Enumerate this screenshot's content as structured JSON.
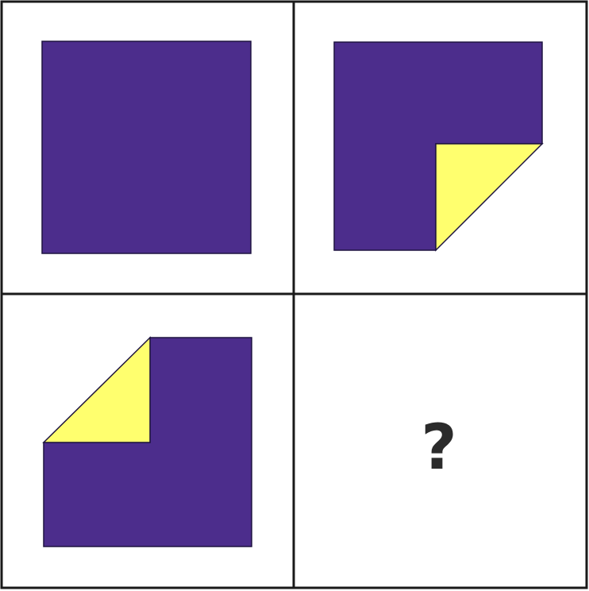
{
  "colors": {
    "background": "#ffffff",
    "grid_line": "#1a1a1a",
    "square_fill": "#4c2d8c",
    "folded_flap_fill": "#ffff6e",
    "shape_outline": "#1e1440",
    "question_mark": "#2b2b2b"
  },
  "panels": [
    {
      "shape": "full-square",
      "fold": "none"
    },
    {
      "shape": "square-with-folded-corner",
      "fold": "bottom-right"
    },
    {
      "shape": "square-with-folded-corner",
      "fold": "top-left"
    },
    {
      "shape": "unknown",
      "label": "?"
    }
  ]
}
